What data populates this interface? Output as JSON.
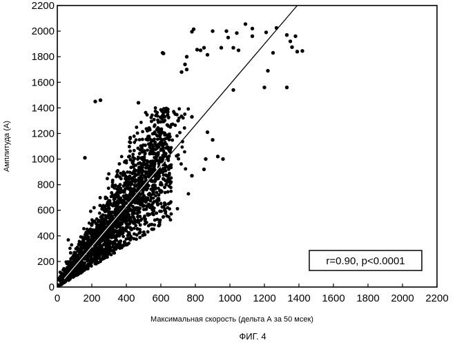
{
  "chart_data": {
    "type": "scatter",
    "xlabel": "Максимальная скорость (дельта А за 50 мсек)",
    "ylabel": "Амплитуда (А)",
    "caption": "ФИГ. 4",
    "annotation": "r=0.90, p<0.0001",
    "xlim": [
      0,
      2200
    ],
    "ylim": [
      0,
      2200
    ],
    "x_ticks": [
      "0",
      "200",
      "400",
      "600",
      "800",
      "1000",
      "1200",
      "1400",
      "1600",
      "1800",
      "2000",
      "2200"
    ],
    "y_ticks": [
      "0",
      "200",
      "400",
      "600",
      "800",
      "1000",
      "1200",
      "1400",
      "1600",
      "1800",
      "2000",
      "2200"
    ],
    "grid": false,
    "regression_line": {
      "x": [
        0,
        1390
      ],
      "y": [
        0,
        2200
      ]
    },
    "cloud": {
      "description": "dense cluster of several thousand points, visually concentrated roughly between x 50-700 and y 50-1300",
      "approx_point_count": 5000
    },
    "points": [
      [
        1270,
        2025
      ],
      [
        790,
        2015
      ],
      [
        780,
        1995
      ],
      [
        900,
        2000
      ],
      [
        980,
        2000
      ],
      [
        990,
        1950
      ],
      [
        1040,
        1985
      ],
      [
        1090,
        2055
      ],
      [
        1130,
        2020
      ],
      [
        1210,
        1990
      ],
      [
        1330,
        1970
      ],
      [
        1380,
        1960
      ],
      [
        1350,
        1920
      ],
      [
        1360,
        1875
      ],
      [
        1420,
        1845
      ],
      [
        1390,
        1840
      ],
      [
        850,
        1870
      ],
      [
        830,
        1850
      ],
      [
        810,
        1855
      ],
      [
        870,
        1815
      ],
      [
        950,
        1870
      ],
      [
        1020,
        1870
      ],
      [
        1050,
        1850
      ],
      [
        1130,
        1960
      ],
      [
        1250,
        1830
      ],
      [
        1220,
        1690
      ],
      [
        610,
        1830
      ],
      [
        615,
        1825
      ],
      [
        750,
        1800
      ],
      [
        740,
        1740
      ],
      [
        750,
        1700
      ],
      [
        720,
        1680
      ],
      [
        1200,
        1560
      ],
      [
        1330,
        1560
      ],
      [
        1020,
        1540
      ],
      [
        930,
        1020
      ],
      [
        960,
        1000
      ],
      [
        250,
        1460
      ],
      [
        470,
        1440
      ],
      [
        160,
        1010
      ],
      [
        220,
        1450
      ],
      [
        780,
        870
      ],
      [
        860,
        1000
      ],
      [
        850,
        920
      ],
      [
        900,
        1150
      ],
      [
        870,
        1210
      ],
      [
        780,
        1330
      ],
      [
        700,
        1300
      ]
    ]
  }
}
